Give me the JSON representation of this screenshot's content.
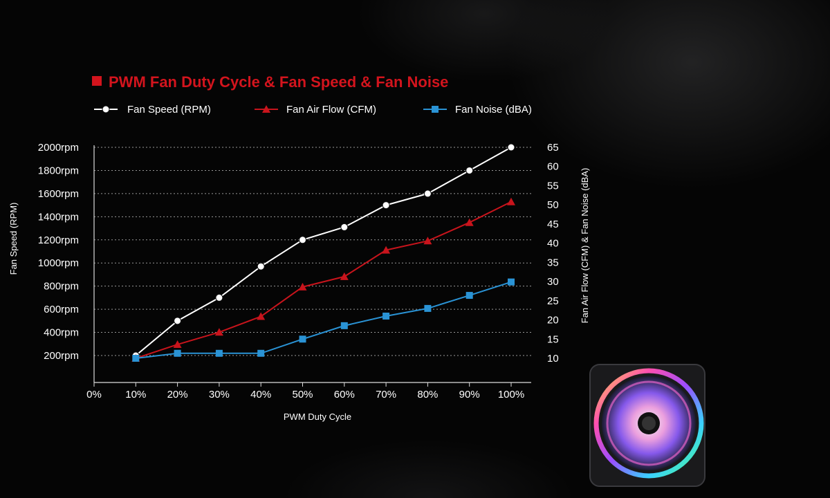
{
  "chart_data": {
    "type": "line",
    "title": "PWM Fan Duty Cycle & Fan Speed & Fan Noise",
    "xlabel": "PWM Duty Cycle",
    "ylabel_left": "Fan Speed (RPM)",
    "ylabel_right": "Fan Air Flow (CFM) & Fan Noise (dBA)",
    "categories": [
      "0%",
      "10%",
      "20%",
      "30%",
      "40%",
      "50%",
      "60%",
      "70%",
      "80%",
      "90%",
      "100%"
    ],
    "y_left": {
      "ticks": [
        200,
        400,
        600,
        800,
        1000,
        1200,
        1400,
        1600,
        1800,
        2000
      ],
      "tick_labels": [
        "200rpm",
        "400rpm",
        "600rpm",
        "800rpm",
        "1000rpm",
        "1200rpm",
        "1400rpm",
        "1600rpm",
        "1800rpm",
        "2000rpm"
      ],
      "ylim": [
        0,
        2000
      ]
    },
    "y_right": {
      "ticks": [
        10,
        15,
        20,
        25,
        30,
        35,
        40,
        45,
        50,
        55,
        60,
        65
      ],
      "tick_labels": [
        "10",
        "15",
        "20",
        "25",
        "30",
        "35",
        "40",
        "45",
        "50",
        "55",
        "60",
        "65"
      ],
      "ylim": [
        10,
        65
      ]
    },
    "grid": "horizontal-dotted",
    "legend_position": "top",
    "series": [
      {
        "name": "Fan Speed (RPM)",
        "axis": "left",
        "marker": "circle",
        "color": "#ffffff",
        "x": [
          "10%",
          "20%",
          "30%",
          "40%",
          "50%",
          "60%",
          "70%",
          "80%",
          "90%",
          "100%"
        ],
        "values": [
          200,
          500,
          700,
          970,
          1200,
          1310,
          1500,
          1600,
          1800,
          2000
        ]
      },
      {
        "name": "Fan Air Flow (CFM)",
        "axis": "right",
        "marker": "triangle",
        "color": "#c8141c",
        "x": [
          "10%",
          "20%",
          "30%",
          "40%",
          "50%",
          "60%",
          "70%",
          "80%",
          "90%",
          "100%"
        ],
        "values": [
          10,
          13.6,
          16.8,
          20.9,
          28.6,
          31.3,
          38.2,
          40.6,
          45.4,
          50.8
        ]
      },
      {
        "name": "Fan Noise (dBA)",
        "axis": "right",
        "marker": "square",
        "color": "#2a93d5",
        "x": [
          "10%",
          "20%",
          "30%",
          "40%",
          "50%",
          "60%",
          "70%",
          "80%",
          "90%",
          "100%"
        ],
        "values": [
          10,
          11.3,
          11.3,
          11.3,
          15,
          18.5,
          21,
          23,
          26.4,
          29.9
        ]
      }
    ]
  },
  "colors": {
    "accent_red": "#d3141d",
    "background": "#050505",
    "grid": "#9a9a9a"
  }
}
